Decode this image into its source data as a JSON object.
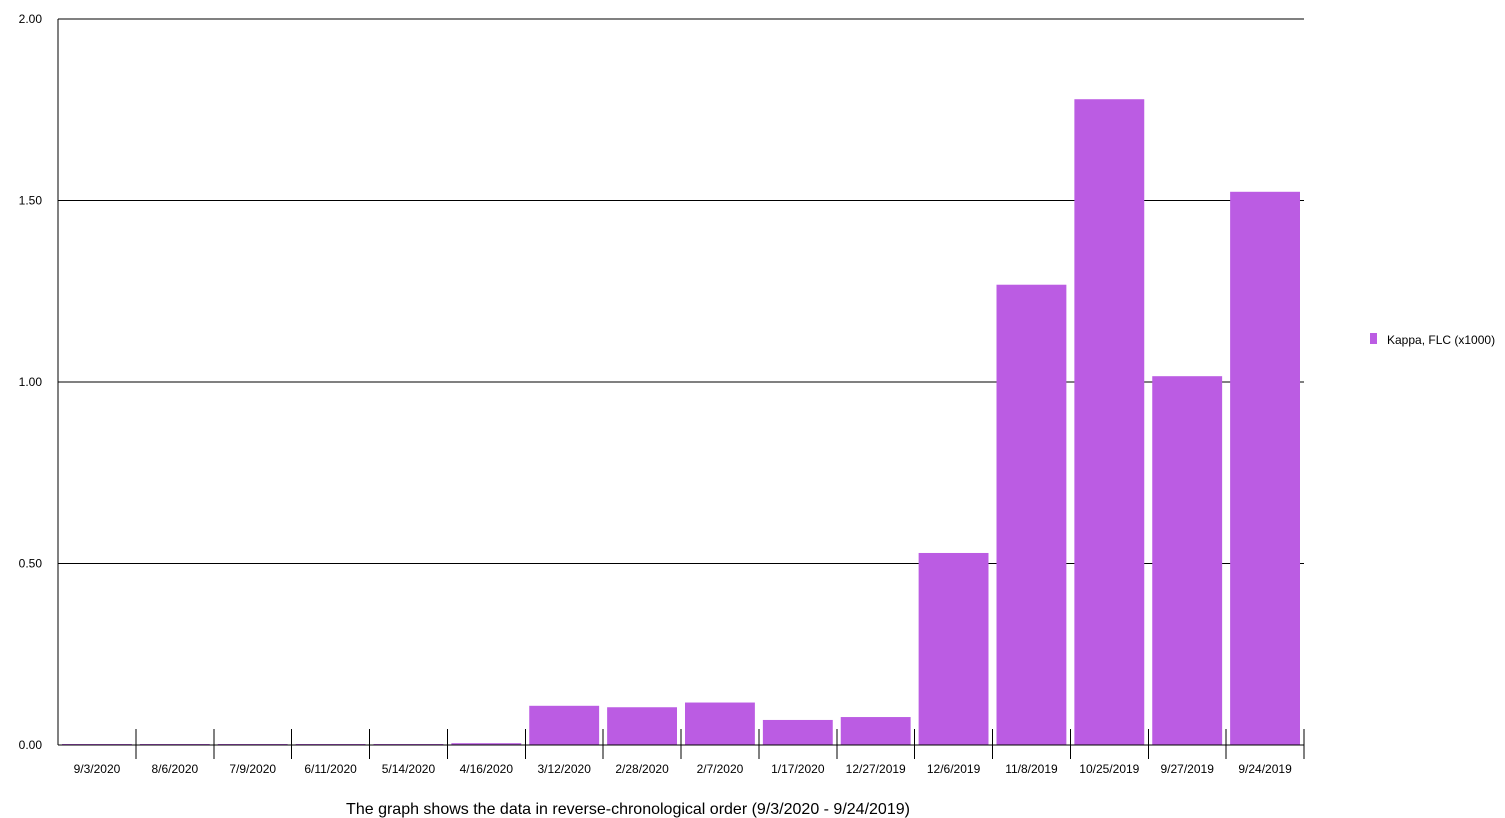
{
  "chart_data": {
    "type": "bar",
    "categories": [
      "9/3/2020",
      "8/6/2020",
      "7/9/2020",
      "6/11/2020",
      "5/14/2020",
      "4/16/2020",
      "3/12/2020",
      "2/28/2020",
      "2/7/2020",
      "1/17/2020",
      "12/27/2019",
      "12/6/2019",
      "11/8/2019",
      "10/25/2019",
      "9/27/2019",
      "9/24/2019"
    ],
    "series": [
      {
        "name": "Kappa, FLC (x1000)",
        "values": [
          0.002,
          0.002,
          0.002,
          0.002,
          0.002,
          0.005,
          0.108,
          0.104,
          0.117,
          0.069,
          0.077,
          0.529,
          1.268,
          1.779,
          1.016,
          1.524
        ],
        "color": "#bb5ce3"
      }
    ],
    "ylim": [
      0,
      2
    ],
    "yticks": [
      "0.00",
      "0.50",
      "1.00",
      "1.50",
      "2.00"
    ],
    "grid": true,
    "legend_position": "right",
    "caption": "The graph shows the data in reverse-chronological order (9/3/2020 - 9/24/2019)"
  }
}
